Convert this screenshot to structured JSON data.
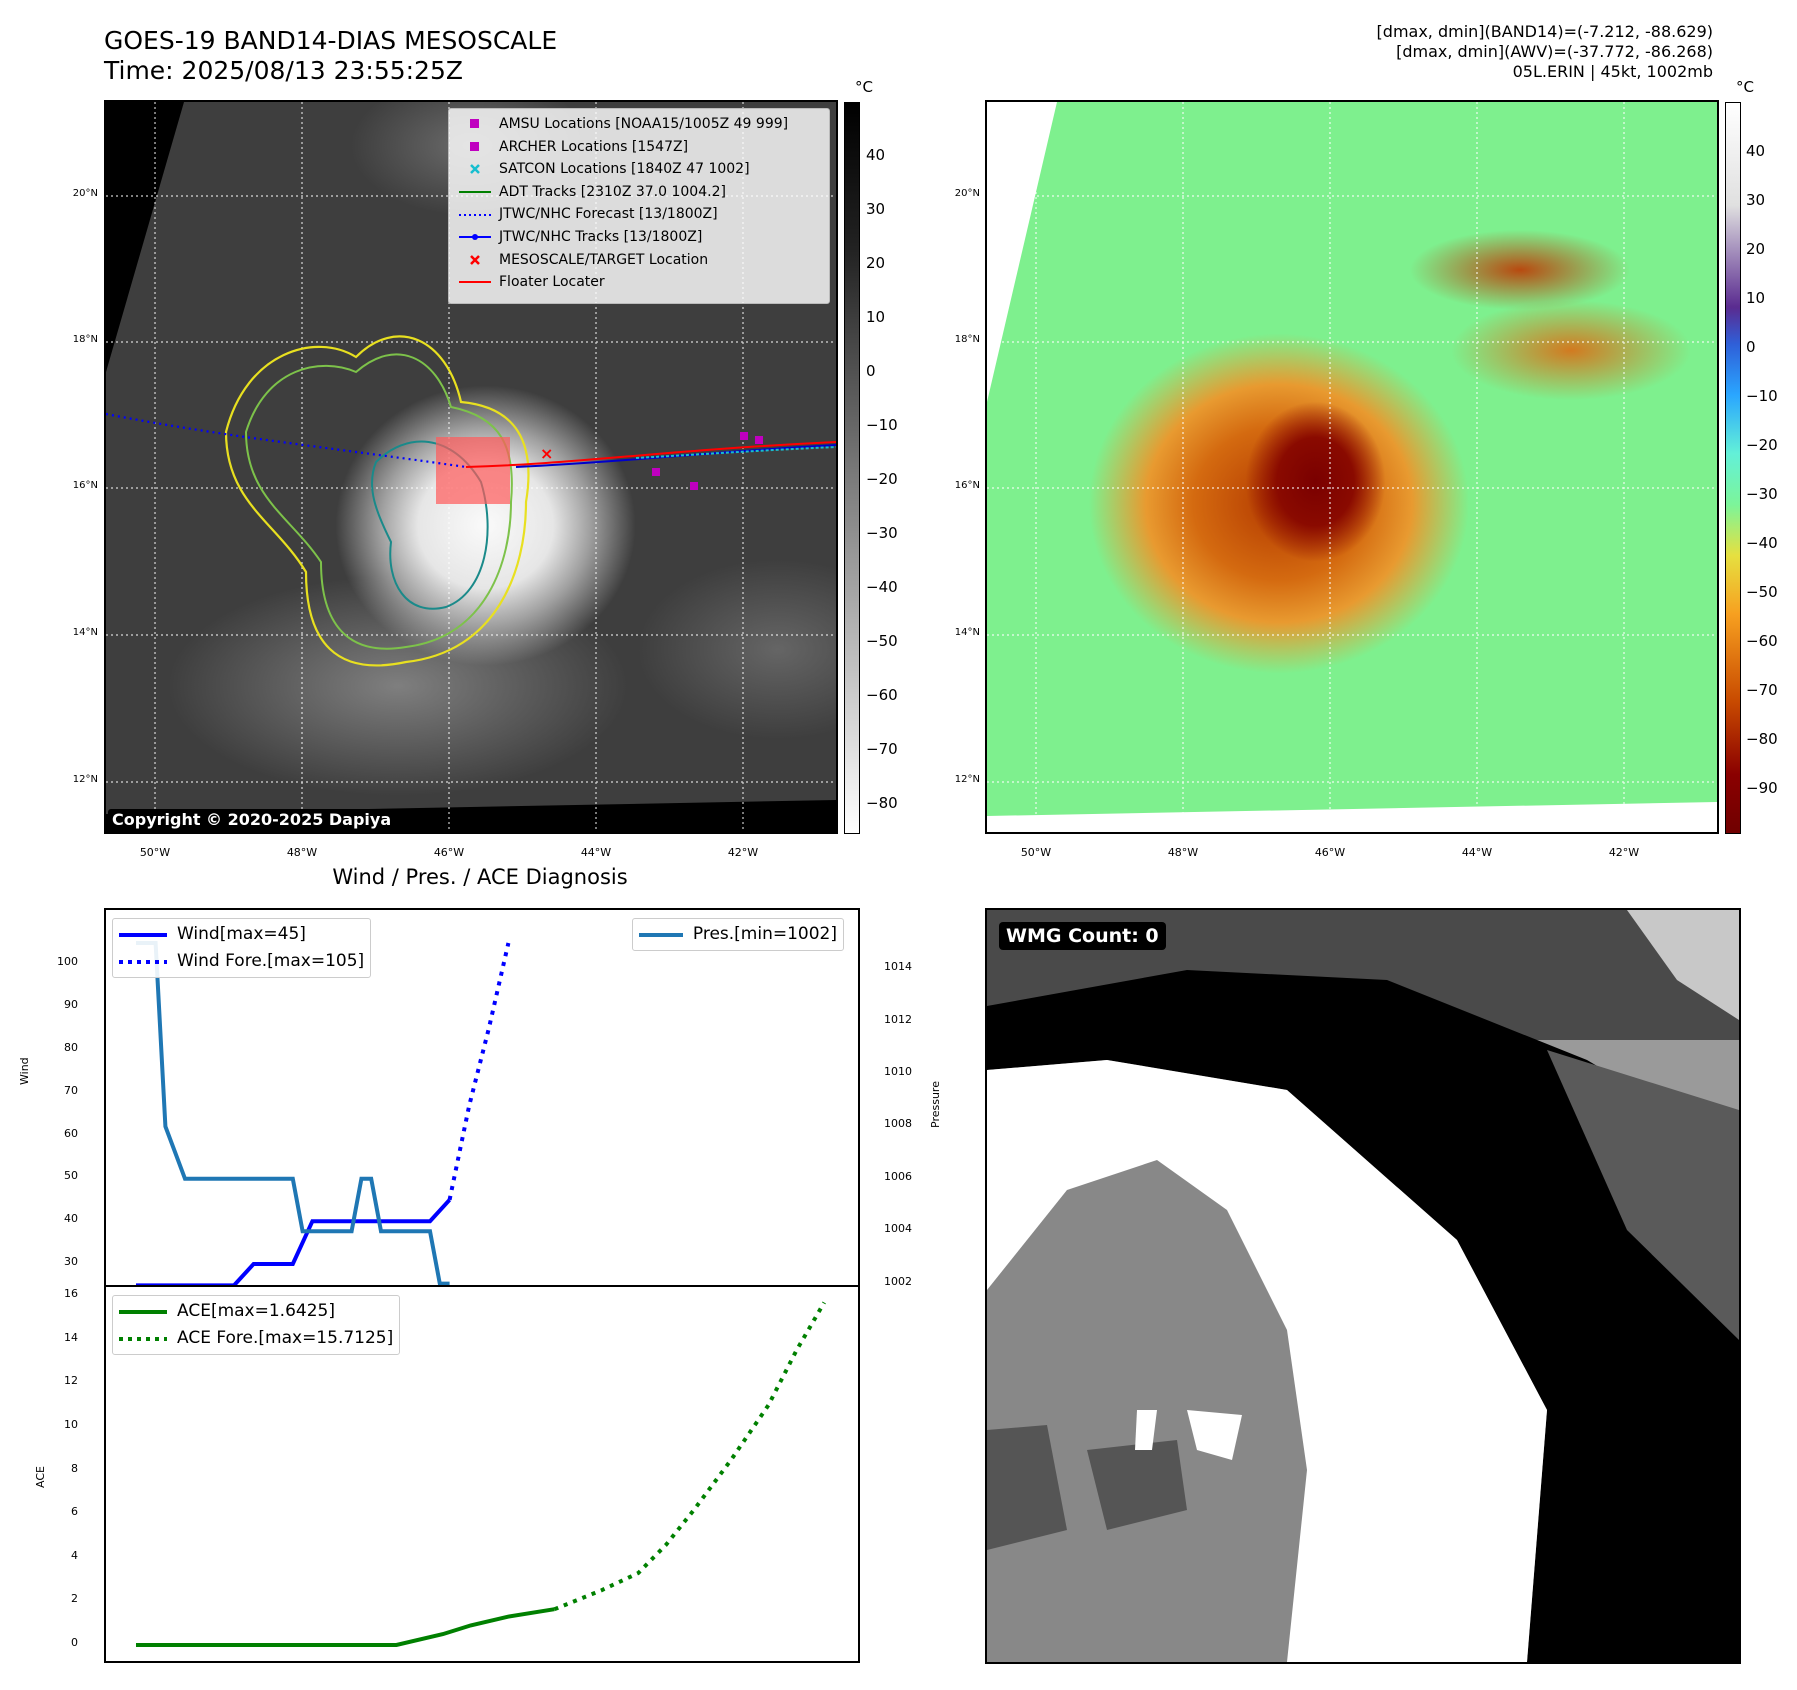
{
  "header": {
    "title_line1": "GOES-19 BAND14-DIAS MESOSCALE",
    "title_line2": "Time: 2025/08/13 23:55:25Z",
    "stats_line1": "[dmax, dmin](BAND14)=(-7.212, -88.629)",
    "stats_line2": "[dmax, dmin](AWV)=(-37.772, -86.268)",
    "stats_line3": "05L.ERIN | 45kt, 1002mb"
  },
  "map": {
    "lat_labels": [
      "20°N",
      "18°N",
      "16°N",
      "14°N",
      "12°N"
    ],
    "lon_labels": [
      "50°W",
      "48°W",
      "46°W",
      "44°W",
      "42°W"
    ],
    "copyright": "Copyright © 2020-2025 Dapiya",
    "legend": [
      {
        "label": "AMSU Locations [NOAA15/1005Z 49 999]",
        "symbol": "square",
        "color": "#c000c0"
      },
      {
        "label": "ARCHER Locations [1547Z]",
        "symbol": "square",
        "color": "#c000c0"
      },
      {
        "label": "SATCON Locations [1840Z 47 1002]",
        "symbol": "x",
        "color": "#17becf"
      },
      {
        "label": "ADT Tracks [2310Z 37.0 1004.2]",
        "symbol": "line",
        "color": "#008000"
      },
      {
        "label": "JTWC/NHC Forecast [13/1800Z]",
        "symbol": "dotted",
        "color": "#0000ff"
      },
      {
        "label": "JTWC/NHC Tracks [13/1800Z]",
        "symbol": "line-dot",
        "color": "#0000ff"
      },
      {
        "label": "MESOSCALE/TARGET Location",
        "symbol": "x",
        "color": "#ff0000"
      },
      {
        "label": "Floater Locater",
        "symbol": "line",
        "color": "#ff0000"
      }
    ]
  },
  "colorbar_left": {
    "unit": "°C",
    "ticks": [
      "40",
      "30",
      "20",
      "10",
      "0",
      "−10",
      "−20",
      "−30",
      "−40",
      "−50",
      "−60",
      "−70",
      "−80"
    ]
  },
  "colorbar_right": {
    "unit": "°C",
    "ticks": [
      "40",
      "30",
      "20",
      "10",
      "0",
      "−10",
      "−20",
      "−30",
      "−40",
      "−50",
      "−60",
      "−70",
      "−80",
      "−90"
    ]
  },
  "diagnosis": {
    "title": "Wind / Pres. / ACE Diagnosis",
    "wind_ylabel": "Wind",
    "pres_ylabel": "Pressure",
    "ace_ylabel": "ACE",
    "wind_legend": [
      "Wind[max=45]",
      "Wind Fore.[max=105]"
    ],
    "pres_legend": [
      "Pres.[min=1002]"
    ],
    "ace_legend": [
      "ACE[max=1.6425]",
      "ACE Fore.[max=15.7125]"
    ],
    "colors": {
      "wind": "#0000ff",
      "pres": "#1f77b4",
      "ace": "#008000"
    }
  },
  "wmg": {
    "label": "WMG Count: 0"
  },
  "chart_data": [
    {
      "type": "line",
      "x": [
        0,
        1,
        2,
        3,
        4,
        5,
        6,
        7,
        8,
        9,
        10,
        11,
        12,
        13,
        14,
        15,
        16,
        17,
        18,
        19
      ],
      "series": [
        {
          "name": "Wind[max=45]",
          "values": [
            25,
            25,
            25,
            25,
            25,
            25,
            30,
            30,
            30,
            40,
            40,
            40,
            40,
            40,
            40,
            40,
            45,
            null,
            null,
            null
          ]
        },
        {
          "name": "Wind Fore.[max=105]",
          "values": [
            null,
            null,
            null,
            null,
            null,
            null,
            null,
            null,
            null,
            null,
            null,
            null,
            null,
            null,
            null,
            null,
            45,
            67,
            85,
            105
          ]
        }
      ],
      "ylabel": "Wind",
      "yticks": [
        30,
        40,
        50,
        60,
        70,
        80,
        90,
        100
      ]
    },
    {
      "type": "line",
      "x": [
        0,
        0.5,
        1,
        1.5,
        2,
        2.5,
        3,
        3.5,
        4,
        4.5,
        5,
        5.5,
        6,
        6.5,
        7,
        7.5,
        8,
        8.5,
        9,
        9.5,
        10,
        10.5,
        11,
        11.5,
        12,
        12.5,
        13,
        13.5,
        14,
        14.5,
        15,
        15.5,
        16
      ],
      "series": [
        {
          "name": "Pres.[min=1002]",
          "values": [
            1015,
            1015,
            1015,
            1008,
            1007,
            1006,
            1006,
            1006,
            1006,
            1006,
            1006,
            1006,
            1006,
            1006,
            1006,
            1006,
            1006,
            1004,
            1004,
            1004,
            1004,
            1004,
            1004,
            1006,
            1006,
            1004,
            1004,
            1004,
            1004,
            1004,
            1004,
            1002,
            1002
          ]
        }
      ],
      "ylabel": "Pressure",
      "yticks": [
        1002,
        1004,
        1006,
        1008,
        1010,
        1012,
        1014
      ]
    },
    {
      "type": "line",
      "x": [
        0,
        6,
        12,
        16,
        20,
        24,
        28,
        33,
        36,
        40,
        45,
        50,
        54,
        57,
        60,
        64,
        68,
        71,
        74
      ],
      "series": [
        {
          "name": "ACE[max=1.6425]",
          "values": [
            0,
            0,
            0,
            0,
            0,
            0,
            0,
            0.5,
            0.9,
            1.3,
            1.6425,
            null,
            null,
            null,
            null,
            null,
            null,
            null,
            null
          ]
        },
        {
          "name": "ACE Fore.[max=15.7125]",
          "values": [
            null,
            null,
            null,
            null,
            null,
            null,
            null,
            null,
            null,
            null,
            1.6425,
            2.5,
            3.3,
            4.6,
            6.2,
            8.5,
            11,
            13.5,
            15.7125
          ]
        }
      ],
      "ylabel": "ACE",
      "yticks": [
        0,
        2,
        4,
        6,
        8,
        10,
        12,
        14,
        16
      ]
    }
  ]
}
